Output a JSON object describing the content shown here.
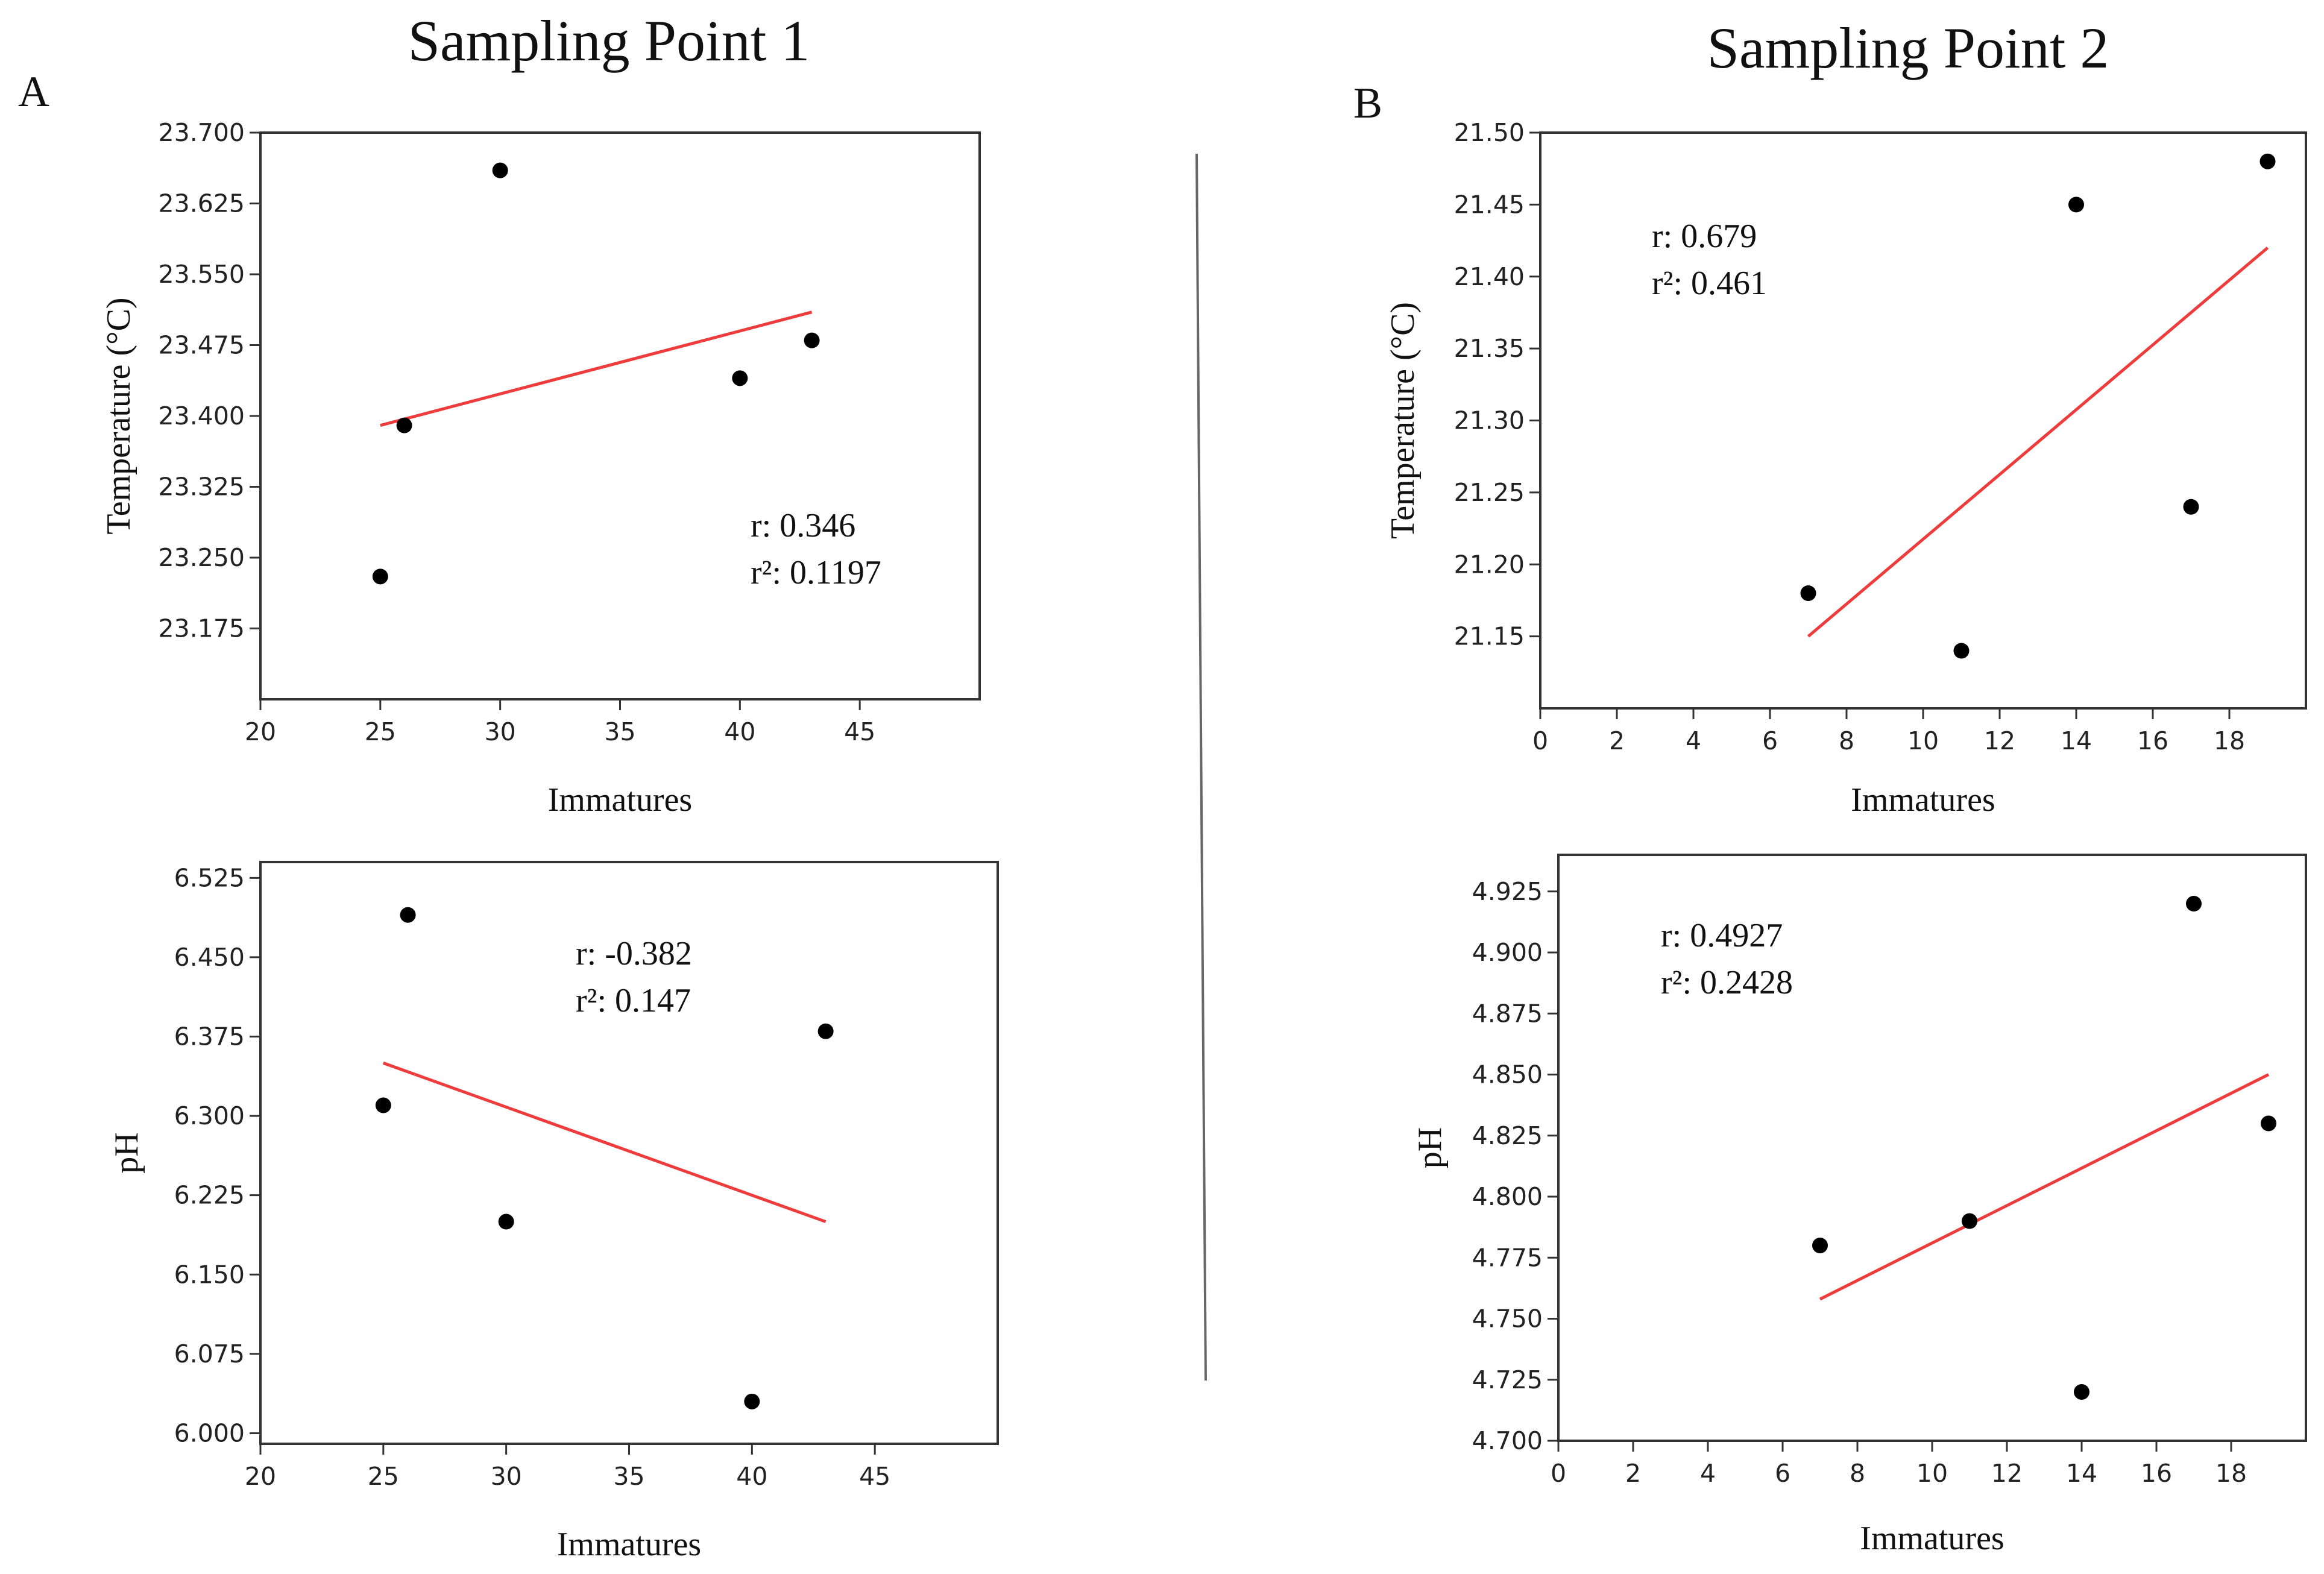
{
  "colors": {
    "fit_line": "#ee3b3b",
    "points": "#000000",
    "frame": "#333333",
    "divider": "#666666"
  },
  "panels": [
    {
      "letter": "A",
      "title": "Sampling Point 1"
    },
    {
      "letter": "B",
      "title": "Sampling Point 2"
    }
  ],
  "chart_data": [
    {
      "type": "scatter",
      "panel": "A",
      "xlabel": "Immatures",
      "ylabel": "Temperature (°C)",
      "xlim": [
        20,
        50
      ],
      "ylim": [
        23.1,
        23.7
      ],
      "xticks": [
        "20",
        "25",
        "30",
        "35",
        "40",
        "45"
      ],
      "yticks": [
        "23.175",
        "23.250",
        "23.325",
        "23.400",
        "23.475",
        "23.550",
        "23.625",
        "23.700"
      ],
      "points": [
        [
          25,
          23.23
        ],
        [
          26,
          23.39
        ],
        [
          30,
          23.66
        ],
        [
          40,
          23.44
        ],
        [
          43,
          23.48
        ]
      ],
      "fit_line": [
        [
          25,
          23.39
        ],
        [
          43,
          23.51
        ]
      ],
      "r_label": "r: 0.346",
      "r2_label": "r²: 0.1197"
    },
    {
      "type": "scatter",
      "panel": "B",
      "xlabel": "Immatures",
      "ylabel": "Temperature (°C)",
      "xlim": [
        0,
        20
      ],
      "ylim": [
        21.1,
        21.5
      ],
      "xticks": [
        "0",
        "2",
        "4",
        "6",
        "8",
        "10",
        "12",
        "14",
        "16",
        "18"
      ],
      "yticks": [
        "21.15",
        "21.20",
        "21.25",
        "21.30",
        "21.35",
        "21.40",
        "21.45",
        "21.50"
      ],
      "points": [
        [
          7,
          21.18
        ],
        [
          11,
          21.14
        ],
        [
          14,
          21.45
        ],
        [
          17,
          21.24
        ],
        [
          19,
          21.48
        ]
      ],
      "fit_line": [
        [
          7,
          21.15
        ],
        [
          19,
          21.42
        ]
      ],
      "r_label": "r: 0.679",
      "r2_label": "r²: 0.461"
    },
    {
      "type": "scatter",
      "panel": "A",
      "xlabel": "Immatures",
      "ylabel": "pH",
      "xlim": [
        20,
        50
      ],
      "ylim": [
        5.99,
        6.54
      ],
      "xticks": [
        "20",
        "25",
        "30",
        "35",
        "40",
        "45"
      ],
      "yticks": [
        "6.000",
        "6.075",
        "6.150",
        "6.225",
        "6.300",
        "6.375",
        "6.450",
        "6.525"
      ],
      "points": [
        [
          25,
          6.31
        ],
        [
          26,
          6.49
        ],
        [
          30,
          6.2
        ],
        [
          40,
          6.03
        ],
        [
          43,
          6.38
        ]
      ],
      "fit_line": [
        [
          25,
          6.35
        ],
        [
          43,
          6.2
        ]
      ],
      "r_label": "r: -0.382",
      "r2_label": "r²: 0.147"
    },
    {
      "type": "scatter",
      "panel": "B",
      "xlabel": "Immatures",
      "ylabel": "pH",
      "xlim": [
        0,
        20
      ],
      "ylim": [
        4.7,
        4.94
      ],
      "xticks": [
        "0",
        "2",
        "4",
        "6",
        "8",
        "10",
        "12",
        "14",
        "16",
        "18"
      ],
      "yticks": [
        "4.700",
        "4.725",
        "4.750",
        "4.775",
        "4.800",
        "4.825",
        "4.850",
        "4.875",
        "4.900",
        "4.925"
      ],
      "points": [
        [
          7,
          4.78
        ],
        [
          11,
          4.79
        ],
        [
          14,
          4.72
        ],
        [
          17,
          4.92
        ],
        [
          19,
          4.83
        ]
      ],
      "fit_line": [
        [
          7,
          4.758
        ],
        [
          19,
          4.85
        ]
      ],
      "r_label": "r: 0.4927",
      "r2_label": "r²: 0.2428"
    }
  ]
}
